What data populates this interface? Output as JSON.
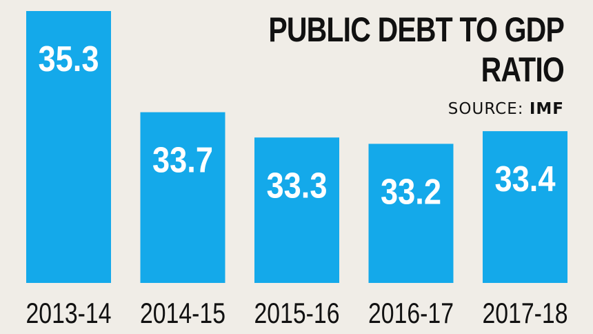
{
  "chart_data": {
    "type": "bar",
    "title": "PUBLIC DEBT TO GDP RATIO",
    "source_label": "SOURCE:",
    "source_name": "IMF",
    "categories": [
      "2013-14",
      "2014-15",
      "2015-16",
      "2016-17",
      "2017-18"
    ],
    "values": [
      35.3,
      33.7,
      33.3,
      33.2,
      33.4
    ],
    "data_labels": [
      "35.3",
      "33.7",
      "33.3",
      "33.2",
      "33.4"
    ],
    "bar_color": "#14a9ea",
    "label_color": "#ffffff",
    "background": "#f0ede7"
  }
}
